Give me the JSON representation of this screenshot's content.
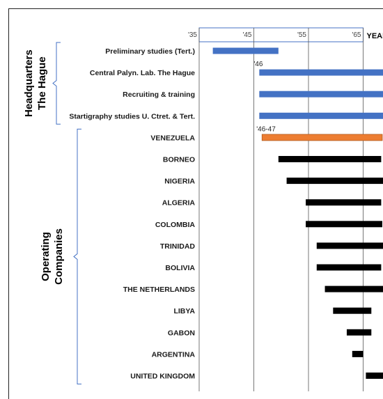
{
  "chart_data": {
    "type": "gantt",
    "axis_ticks": [
      "'35",
      "'45",
      "'55",
      "'65"
    ],
    "axis_title": "YEAR",
    "xlim": [
      1935,
      1975
    ],
    "groups": [
      {
        "name": "Headquarters The Hague",
        "lines": [
          "Headquarters",
          "The Hague"
        ],
        "tasks": [
          {
            "label": "Preliminary studies (Tert.)",
            "start": 1937.5,
            "end": 1949.5,
            "color": "#4472C4"
          },
          {
            "label": "Central Palyn. Lab. The Hague",
            "start": 1946,
            "end": 1975,
            "color": "#4472C4",
            "annotation": "'46"
          },
          {
            "label": "Recruiting & training",
            "start": 1946,
            "end": 1975,
            "color": "#4472C4"
          },
          {
            "label": "Startigraphy studies U. Ctret. & Tert.",
            "start": 1946,
            "end": 1975,
            "color": "#4472C4"
          }
        ]
      },
      {
        "name": "Operating Companies",
        "lines": [
          "Operating",
          "Companies"
        ],
        "tasks": [
          {
            "label": "VENEZUELA",
            "start": 1946.5,
            "end": 1968.5,
            "color": "#ED7D31",
            "annotation": "'46-47"
          },
          {
            "label": "BORNEO",
            "start": 1949.5,
            "end": 1968.3,
            "color": "#000000"
          },
          {
            "label": "NIGERIA",
            "start": 1951,
            "end": 1975,
            "color": "#000000"
          },
          {
            "label": "ALGERIA",
            "start": 1954.5,
            "end": 1968.3,
            "color": "#000000"
          },
          {
            "label": "COLOMBIA",
            "start": 1954.5,
            "end": 1968.5,
            "color": "#000000"
          },
          {
            "label": "TRINIDAD",
            "start": 1956.5,
            "end": 1975,
            "color": "#000000"
          },
          {
            "label": "BOLIVIA",
            "start": 1956.5,
            "end": 1968.3,
            "color": "#000000"
          },
          {
            "label": "THE NETHERLANDS",
            "start": 1958,
            "end": 1975,
            "color": "#000000"
          },
          {
            "label": "LIBYA",
            "start": 1959.5,
            "end": 1966.5,
            "color": "#000000"
          },
          {
            "label": "GABON",
            "start": 1962,
            "end": 1966.5,
            "color": "#000000"
          },
          {
            "label": "ARGENTINA",
            "start": 1963,
            "end": 1965,
            "color": "#000000"
          },
          {
            "label": "UNITED KINGDOM",
            "start": 1965.5,
            "end": 1975,
            "color": "#000000"
          }
        ]
      }
    ],
    "colors": {
      "headquarters": "#4472C4",
      "venezuela": "#ED7D31",
      "operating": "#000000",
      "axis_box": "#4472C4",
      "bracket": "#4472C4"
    }
  }
}
